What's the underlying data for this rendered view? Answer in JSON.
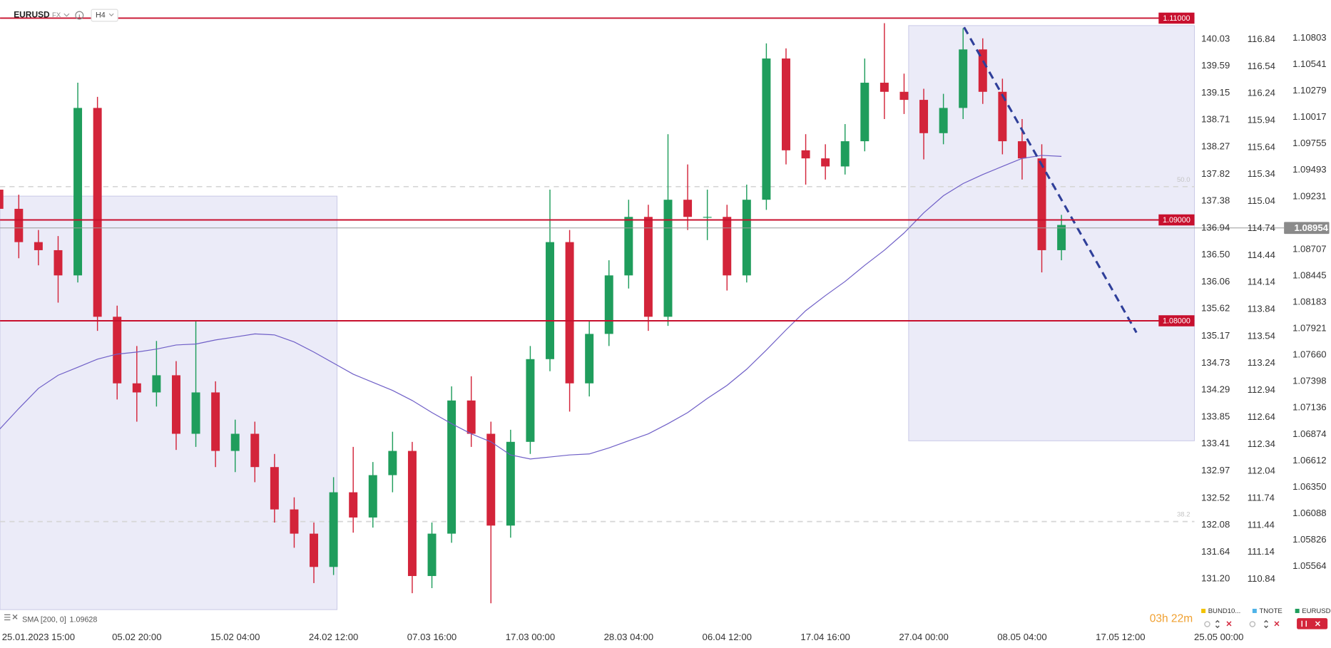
{
  "toolbar": {
    "symbol": "EURUSD",
    "market": "FX",
    "interval": "H4"
  },
  "chart_data": {
    "type": "candlestick",
    "name": "EURUSD",
    "categories": [
      null,
      null,
      "25.01.2023 15:00",
      null,
      null,
      null,
      null,
      "05.02 20:00",
      null,
      null,
      null,
      null,
      "15.02 04:00",
      null,
      null,
      null,
      null,
      "24.02 12:00",
      null,
      null,
      null,
      null,
      "07.03 16:00",
      null,
      null,
      null,
      null,
      "17.03 00:00",
      null,
      null,
      null,
      null,
      "28.03 04:00",
      null,
      null,
      null,
      null,
      "06.04 12:00",
      null,
      null,
      null,
      null,
      "17.04 16:00",
      null,
      null,
      null,
      null,
      "27.04 00:00",
      null,
      null,
      null,
      null,
      "08.05 04:00",
      null,
      null,
      null,
      null,
      "17.05 12:00",
      null,
      null,
      null,
      null,
      "25.05 00:00"
    ],
    "open": [
      1.093,
      1.0911,
      1.0878,
      1.087,
      1.0845,
      1.1011,
      1.0804,
      1.0738,
      1.0729,
      1.0746,
      1.0688,
      1.0729,
      1.0671,
      1.0688,
      1.0655,
      1.0613,
      1.0589,
      1.0556,
      1.063,
      1.0605,
      1.0647,
      1.0671,
      1.0547,
      1.0589,
      1.0721,
      1.0688,
      1.0597,
      1.068,
      1.0762,
      1.0878,
      1.0738,
      1.0787,
      1.0845,
      1.0903,
      1.0804,
      1.092,
      1.0903,
      1.0903,
      1.0845,
      1.092,
      1.106,
      1.0969,
      1.0961,
      1.0953,
      1.0978,
      1.1036,
      1.1027,
      1.1019,
      1.0986,
      1.1011,
      1.1069,
      1.1027,
      1.0978,
      1.0961,
      1.087,
      null,
      null,
      null,
      null,
      null,
      null,
      null,
      null
    ],
    "high": [
      1.0943,
      1.0925,
      1.089,
      1.0884,
      1.1036,
      1.1022,
      1.0815,
      1.0775,
      1.078,
      1.076,
      1.08,
      1.074,
      1.0702,
      1.07,
      1.0668,
      1.0625,
      1.06,
      1.0645,
      1.0675,
      1.066,
      1.069,
      1.068,
      1.06,
      1.0735,
      1.0745,
      1.07,
      1.0692,
      1.0775,
      1.093,
      1.089,
      1.08,
      1.086,
      1.092,
      1.0915,
      1.0985,
      1.0955,
      1.093,
      1.0915,
      1.0935,
      1.1075,
      1.107,
      1.0985,
      1.0975,
      1.0995,
      1.106,
      1.1095,
      1.1045,
      1.103,
      1.1025,
      1.109,
      1.108,
      1.104,
      1.1,
      1.0975,
      1.0905,
      null,
      null,
      null,
      null,
      null,
      null,
      null,
      null
    ],
    "low": [
      1.0895,
      1.0862,
      1.0855,
      1.0818,
      1.0838,
      1.079,
      1.0722,
      1.07,
      1.0715,
      1.0672,
      1.0675,
      1.0655,
      1.065,
      1.064,
      1.06,
      1.0575,
      1.054,
      1.0548,
      1.059,
      1.0595,
      1.063,
      1.053,
      1.0535,
      1.058,
      1.0675,
      1.052,
      1.0585,
      1.0668,
      1.075,
      1.071,
      1.0725,
      1.0775,
      1.0832,
      1.079,
      1.0795,
      1.089,
      1.088,
      1.083,
      1.0838,
      1.091,
      1.0955,
      1.0935,
      1.094,
      1.0945,
      1.0968,
      1.1,
      1.1005,
      1.096,
      1.0975,
      1.1,
      1.1015,
      1.0965,
      1.094,
      1.0848,
      1.086,
      null,
      null,
      null,
      null,
      null,
      null,
      null,
      null
    ],
    "close": [
      1.0911,
      1.0878,
      1.087,
      1.0845,
      1.1011,
      1.0804,
      1.0738,
      1.0729,
      1.0746,
      1.0688,
      1.0729,
      1.0671,
      1.0688,
      1.0655,
      1.0613,
      1.0589,
      1.0556,
      1.063,
      1.0605,
      1.0647,
      1.0671,
      1.0547,
      1.0589,
      1.0721,
      1.0688,
      1.0597,
      1.068,
      1.0762,
      1.0878,
      1.0738,
      1.0787,
      1.0845,
      1.0903,
      1.0804,
      1.092,
      1.0903,
      1.0903,
      1.0845,
      1.092,
      1.106,
      1.0969,
      1.0961,
      1.0953,
      1.0978,
      1.1036,
      1.1027,
      1.1019,
      1.0986,
      1.1011,
      1.1069,
      1.1027,
      1.0978,
      1.0961,
      1.087,
      1.0895,
      null,
      null,
      null,
      null,
      null,
      null,
      null,
      null
    ],
    "up_color": "#1f9d5c",
    "down_color": "#d3243a",
    "ylim": [
      1.0501,
      1.1118
    ],
    "yticks": [
      1.10803,
      1.10541,
      1.10279,
      1.10017,
      1.09755,
      1.09493,
      1.09231,
      1.08707,
      1.08445,
      1.08183,
      1.07921,
      {
        "value": 1.0766,
        "label": "1.07660"
      },
      1.07398,
      1.07136,
      1.06874,
      1.06612,
      {
        "value": 1.0635,
        "label": "1.06350"
      },
      1.06088,
      1.05826,
      1.05564
    ],
    "last_price": 1.08954,
    "overlays": [
      {
        "name": "SMA [200, 0]",
        "last": 1.09628,
        "color": "#6f5fc7",
        "values": [
          1.0692,
          1.0713,
          1.0733,
          1.0746,
          1.0754,
          1.0762,
          1.0767,
          1.0769,
          1.0772,
          1.0776,
          1.0777,
          1.0781,
          1.0784,
          1.0787,
          1.0786,
          1.0779,
          1.0769,
          1.0758,
          1.0747,
          1.0739,
          1.0731,
          1.0721,
          1.0709,
          1.0698,
          1.0688,
          1.068,
          1.0667,
          1.0663,
          1.0665,
          1.0667,
          1.0668,
          1.0674,
          1.0681,
          1.0688,
          1.0698,
          1.0709,
          1.0723,
          1.0736,
          1.0752,
          1.0771,
          1.0791,
          1.081,
          1.0825,
          1.0839,
          1.0855,
          1.087,
          1.0887,
          1.0907,
          1.0924,
          1.0936,
          1.0945,
          1.0953,
          1.0961,
          1.0964,
          1.0963,
          null,
          null,
          null,
          null,
          null,
          null,
          null,
          null
        ]
      }
    ],
    "levels": [
      {
        "value": 1.11,
        "label": "1.11000"
      },
      {
        "value": 1.09,
        "label": "1.09000"
      },
      {
        "value": 1.08,
        "label": "1.08000"
      }
    ],
    "level_color": "#c8102e",
    "fib_levels": [
      {
        "value": 1.0933,
        "label": "50.0"
      },
      {
        "value": 1.0601,
        "label": "38.2"
      }
    ],
    "extra_axes": [
      {
        "name": "BUND10...",
        "color": "#f2c200",
        "lim": [
          130.49,
          140.67
        ],
        "ticks": [
          140.03,
          139.59,
          139.15,
          138.71,
          138.27,
          137.82,
          137.38,
          136.94,
          {
            "value": 136.5,
            "label": "136.50"
          },
          136.06,
          135.62,
          135.17,
          134.73,
          134.29,
          133.85,
          133.41,
          132.97,
          132.52,
          132.08,
          131.64,
          {
            "value": 131.2,
            "label": "131.20"
          }
        ]
      },
      {
        "name": "TNOTE",
        "color": "#4fb3e8",
        "lim": [
          110.36,
          117.28
        ],
        "ticks": [
          116.84,
          116.54,
          116.24,
          115.94,
          115.64,
          115.34,
          115.04,
          114.74,
          114.44,
          114.14,
          113.84,
          113.54,
          113.24,
          112.94,
          112.64,
          112.34,
          112.04,
          111.74,
          111.44,
          111.14,
          110.84
        ]
      }
    ],
    "legend_color": "#1f9d5c",
    "countdown": "03h 22m"
  }
}
